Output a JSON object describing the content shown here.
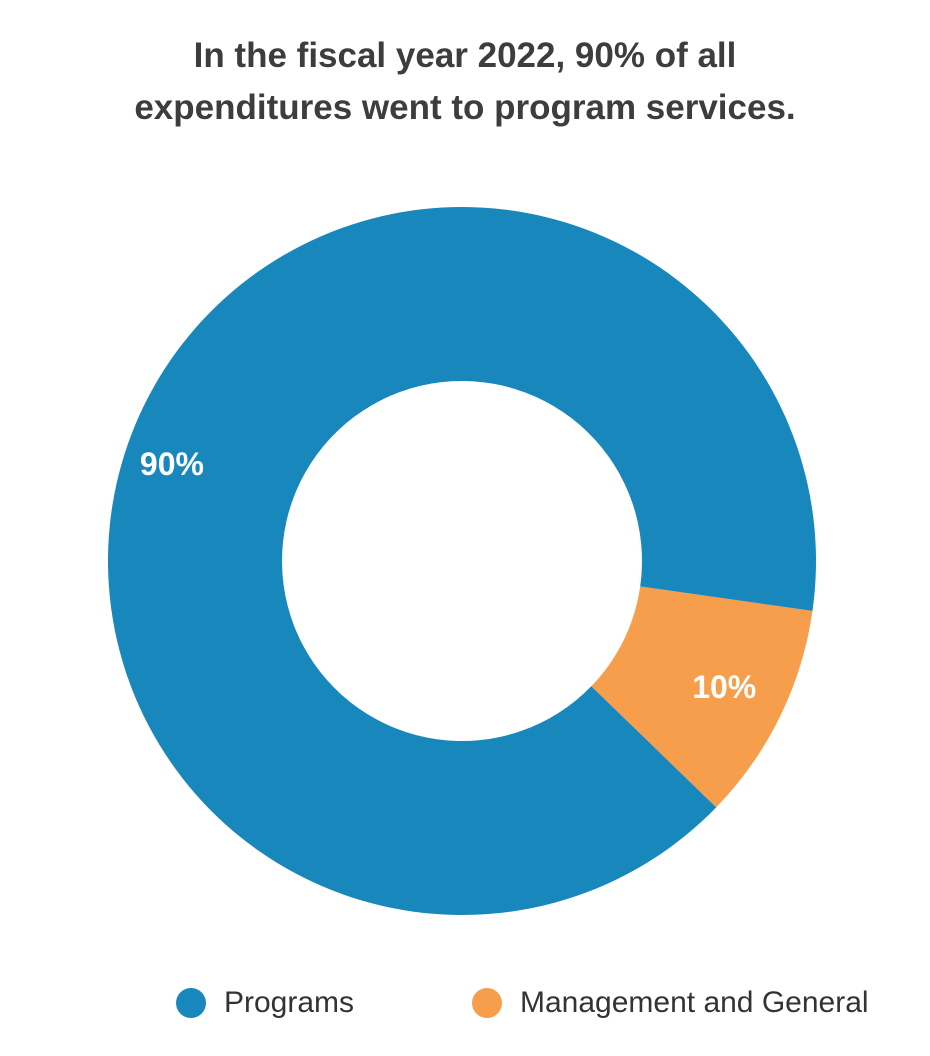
{
  "chart_data": {
    "type": "pie",
    "variant": "donut",
    "title": "In the fiscal year 2022, 90% of all expenditures went to program services.",
    "categories": [
      "Programs",
      "Management and General"
    ],
    "values": [
      90,
      10
    ],
    "value_labels": [
      "90%",
      "10%"
    ],
    "unit": "%",
    "colors": [
      "#1787BC",
      "#F79E4C"
    ],
    "legend": {
      "placement": "bottom",
      "items": [
        "Programs",
        "Management and General"
      ]
    }
  }
}
